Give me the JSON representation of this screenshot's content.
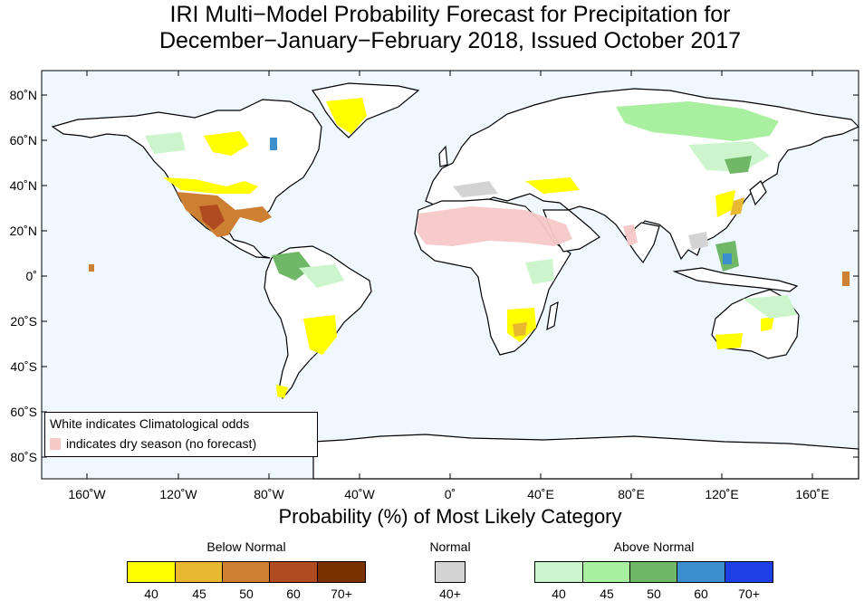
{
  "title": {
    "line1": "IRI Multi−Model Probability Forecast for Precipitation for",
    "line2": "December−January−February 2018, Issued October 2017"
  },
  "map": {
    "y_ticks": [
      "80˚N",
      "60˚N",
      "40˚N",
      "20˚N",
      "0˚",
      "20˚S",
      "40˚S",
      "60˚S",
      "80˚S"
    ],
    "x_ticks": [
      "160˚W",
      "120˚W",
      "80˚W",
      "40˚W",
      "0˚",
      "40˚E",
      "80˚E",
      "120˚E",
      "160˚E"
    ],
    "ocean_color": "#f0f8ff",
    "land_color": "#ffffff",
    "dry_season_color": "#f7c8c8"
  },
  "inset_legend": {
    "line1": "White indicates Climatological odds",
    "line2": "indicates dry season (no forecast)"
  },
  "xaxis_label": "Probability (%) of Most Likely Category",
  "categories": {
    "below": {
      "title": "Below Normal",
      "labels": [
        "40",
        "45",
        "50",
        "60",
        "70+"
      ],
      "colors": [
        "#ffff00",
        "#e8b830",
        "#cd7f32",
        "#b04a20",
        "#7a3000"
      ]
    },
    "normal": {
      "title": "Normal",
      "labels": [
        "40+"
      ],
      "colors": [
        "#d3d3d3"
      ]
    },
    "above": {
      "title": "Above Normal",
      "labels": [
        "40",
        "45",
        "50",
        "60",
        "70+"
      ],
      "colors": [
        "#ccf5cc",
        "#a8f0a0",
        "#70b868",
        "#3a8fcc",
        "#1f3fe6"
      ]
    }
  }
}
